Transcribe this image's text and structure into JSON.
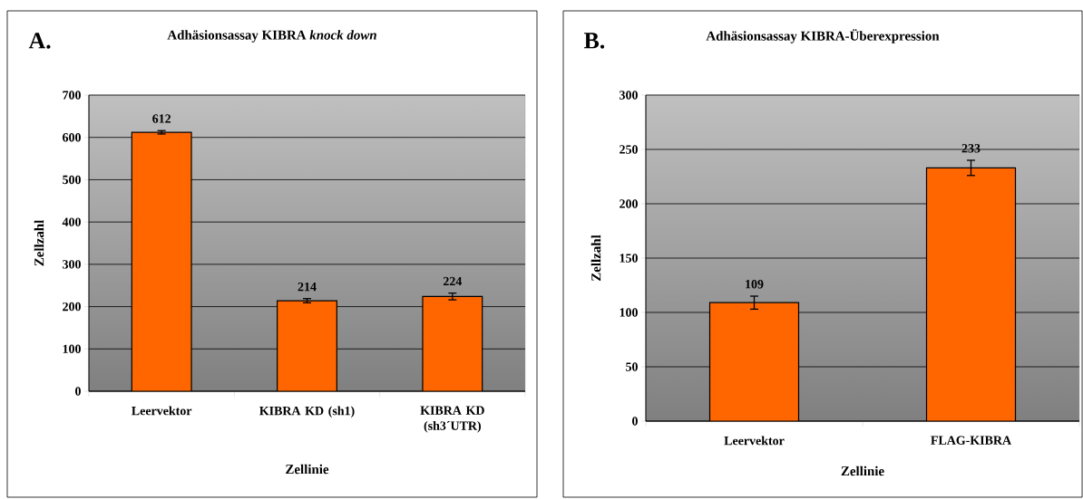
{
  "chart_data": [
    {
      "type": "bar",
      "title": "Adhäsionsassay KIBRA *knock down*",
      "xlabel": "Zellinie",
      "ylabel": "Zellzahl",
      "annotations": [
        "A."
      ],
      "categories": [
        "Leervektor",
        "KIBRA KD (sh1)",
        "KIBRA KD (sh3´UTR)"
      ],
      "values": [
        612,
        214,
        224
      ],
      "errors": [
        4,
        5,
        8
      ],
      "color": "#ff6600",
      "data_labels": true,
      "ylim": [
        0,
        700
      ],
      "yticks": [
        0,
        100,
        200,
        300,
        400,
        500,
        600,
        700
      ],
      "grid": "y"
    },
    {
      "type": "bar",
      "title": "Adhäsionsassay KIBRA-Überexpression",
      "xlabel": "Zellinie",
      "ylabel": "Zellzahl",
      "annotations": [
        "B."
      ],
      "categories": [
        "Leervektor",
        "FLAG-KIBRA"
      ],
      "values": [
        109,
        233
      ],
      "errors": [
        6,
        7
      ],
      "color": "#ff6600",
      "data_labels": true,
      "ylim": [
        0,
        300
      ],
      "yticks": [
        0,
        50,
        100,
        150,
        200,
        250,
        300
      ],
      "grid": "y"
    }
  ]
}
